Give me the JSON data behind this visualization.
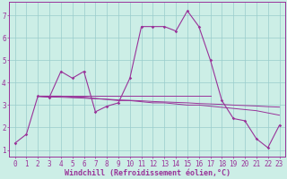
{
  "bg_color": "#cceee6",
  "line_color": "#993399",
  "grid_color": "#99cccc",
  "xlabel": "Windchill (Refroidissement éolien,°C)",
  "xlabel_fontsize": 6.0,
  "tick_fontsize": 5.5,
  "xlim": [
    -0.5,
    23.5
  ],
  "ylim": [
    0.7,
    7.6
  ],
  "yticks": [
    1,
    2,
    3,
    4,
    5,
    6,
    7
  ],
  "xticks": [
    0,
    1,
    2,
    3,
    4,
    5,
    6,
    7,
    8,
    9,
    10,
    11,
    12,
    13,
    14,
    15,
    16,
    17,
    18,
    19,
    20,
    21,
    22,
    23
  ],
  "series1_x": [
    0,
    1,
    2,
    3,
    4,
    5,
    6,
    7,
    8,
    9,
    10,
    11,
    12,
    13,
    14,
    15,
    16,
    17,
    18,
    19,
    20,
    21,
    22,
    23
  ],
  "series1_y": [
    1.3,
    1.7,
    3.4,
    3.35,
    4.5,
    4.2,
    4.5,
    2.7,
    2.95,
    3.1,
    4.2,
    6.5,
    6.5,
    6.5,
    6.3,
    7.2,
    6.5,
    5.0,
    3.2,
    2.4,
    2.3,
    1.5,
    1.1,
    2.1
  ],
  "series2_x": [
    2,
    3,
    4,
    5,
    6,
    7,
    8,
    9,
    10,
    11,
    12,
    13,
    14,
    15,
    16,
    17,
    18,
    19,
    20,
    21,
    22,
    23
  ],
  "series2_y": [
    3.4,
    3.4,
    3.4,
    3.35,
    3.35,
    3.3,
    3.25,
    3.2,
    3.2,
    3.15,
    3.1,
    3.1,
    3.05,
    3.0,
    3.0,
    2.95,
    2.9,
    2.85,
    2.8,
    2.75,
    2.65,
    2.55
  ],
  "series3_x": [
    2,
    3,
    4,
    5,
    6,
    7,
    8,
    9,
    10,
    11,
    12,
    13,
    14,
    15,
    16,
    17,
    18,
    19,
    20,
    21,
    22,
    23
  ],
  "series3_y": [
    3.38,
    3.36,
    3.35,
    3.33,
    3.31,
    3.28,
    3.26,
    3.23,
    3.21,
    3.19,
    3.16,
    3.14,
    3.12,
    3.1,
    3.07,
    3.05,
    3.03,
    3.0,
    2.98,
    2.96,
    2.93,
    2.91
  ],
  "series4_x": [
    2,
    3,
    4,
    5,
    6,
    7,
    8,
    9,
    10,
    11,
    12,
    13,
    14,
    15,
    16,
    17
  ],
  "series4_y": [
    3.4,
    3.4,
    3.4,
    3.4,
    3.4,
    3.4,
    3.4,
    3.4,
    3.4,
    3.4,
    3.4,
    3.4,
    3.4,
    3.4,
    3.4,
    3.4
  ]
}
